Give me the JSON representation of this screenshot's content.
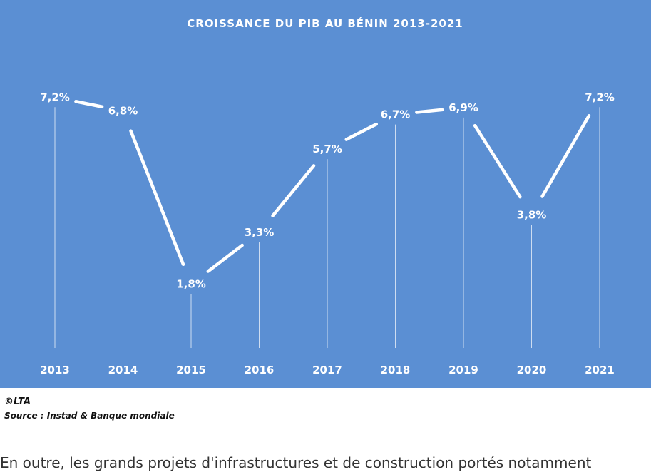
{
  "chart_data": {
    "type": "line",
    "title": "CROISSANCE DU PIB AU BÉNIN 2013-2021",
    "categories": [
      "2013",
      "2014",
      "2015",
      "2016",
      "2017",
      "2018",
      "2019",
      "2020",
      "2021"
    ],
    "values": [
      7.2,
      6.8,
      1.8,
      3.3,
      5.7,
      6.7,
      6.9,
      3.8,
      7.2
    ],
    "data_labels": [
      "7,2%",
      "6,8%",
      "1,8%",
      "3,3%",
      "5,7%",
      "6,7%",
      "6,9%",
      "3,8%",
      "7,2%"
    ],
    "grid": false,
    "legend": "none",
    "colors": {
      "background": "#5b8fd3",
      "line": "#ffffff",
      "text": "#ffffff"
    }
  },
  "caption": {
    "credit": "©LTA",
    "source": "Source : Instad & Banque mondiale"
  },
  "article": {
    "text": "En outre, les grands projets d'infrastructures et de construction portés notamment"
  }
}
